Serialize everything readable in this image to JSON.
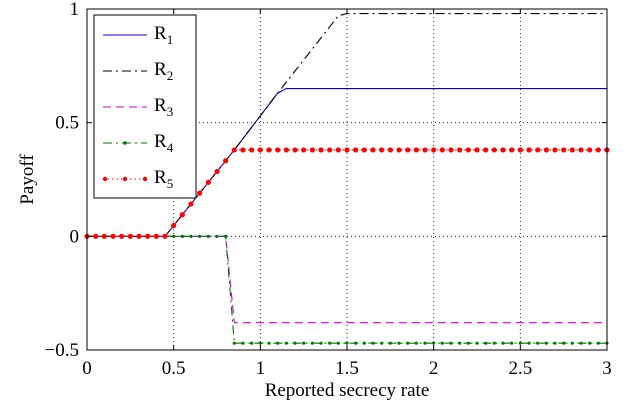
{
  "chart_data": {
    "type": "line",
    "title": "",
    "xlabel": "Reported secrecy rate",
    "ylabel": "Payoff",
    "xlim": [
      0,
      3
    ],
    "ylim": [
      -0.5,
      1
    ],
    "x_ticks": [
      0,
      0.5,
      1,
      1.5,
      2,
      2.5,
      3
    ],
    "x_tick_labels": [
      "0",
      "0.5",
      "1",
      "1.5",
      "2",
      "2.5",
      "3"
    ],
    "y_ticks": [
      -0.5,
      0,
      0.5,
      1
    ],
    "y_tick_labels": [
      "−0.5",
      "0",
      "0.5",
      "1"
    ],
    "grid": true,
    "grid_style": "dotted",
    "legend_position": "top-left",
    "series": [
      {
        "name": "R",
        "subscript": "1",
        "color": "#0000cc",
        "style": "solid",
        "marker": "none",
        "x": [
          0,
          0.45,
          0.85,
          1.1,
          1.15,
          3
        ],
        "y": [
          0,
          0,
          0.38,
          0.63,
          0.65,
          0.65
        ]
      },
      {
        "name": "R",
        "subscript": "2",
        "color": "#000000",
        "style": "dashdot",
        "marker": "none",
        "x": [
          0,
          0.45,
          0.85,
          1.1,
          1.45,
          1.5,
          3
        ],
        "y": [
          0,
          0,
          0.38,
          0.63,
          0.97,
          0.98,
          0.98
        ]
      },
      {
        "name": "R",
        "subscript": "3",
        "color": "#cc00cc",
        "style": "dashed",
        "marker": "none",
        "x": [
          0,
          0.8,
          0.85,
          3
        ],
        "y": [
          0,
          0,
          -0.38,
          -0.38
        ]
      },
      {
        "name": "R",
        "subscript": "4",
        "color": "#007700",
        "style": "dashdot",
        "marker": "dot",
        "x": [
          0,
          0.8,
          0.85,
          3
        ],
        "y": [
          0,
          0,
          -0.47,
          -0.47
        ],
        "marker_x": [
          0,
          0.05,
          0.1,
          0.15,
          0.2,
          0.25,
          0.3,
          0.35,
          0.4,
          0.45,
          0.5,
          0.55,
          0.6,
          0.65,
          0.7,
          0.75,
          0.8,
          0.85,
          0.9,
          0.95,
          1,
          1.05,
          1.1,
          1.15,
          1.2,
          1.25,
          1.3,
          1.35,
          1.4,
          1.45,
          1.5,
          1.55,
          1.6,
          1.65,
          1.7,
          1.75,
          1.8,
          1.85,
          1.9,
          1.95,
          2,
          2.05,
          2.1,
          2.15,
          2.2,
          2.25,
          2.3,
          2.35,
          2.4,
          2.45,
          2.5,
          2.55,
          2.6,
          2.65,
          2.7,
          2.75,
          2.8,
          2.85,
          2.9,
          2.95,
          3
        ],
        "marker_y": [
          0,
          0,
          0,
          0,
          0,
          0,
          0,
          0,
          0,
          0,
          0,
          0,
          0,
          0,
          0,
          0,
          0,
          -0.47,
          -0.47,
          -0.47,
          -0.47,
          -0.47,
          -0.47,
          -0.47,
          -0.47,
          -0.47,
          -0.47,
          -0.47,
          -0.47,
          -0.47,
          -0.47,
          -0.47,
          -0.47,
          -0.47,
          -0.47,
          -0.47,
          -0.47,
          -0.47,
          -0.47,
          -0.47,
          -0.47,
          -0.47,
          -0.47,
          -0.47,
          -0.47,
          -0.47,
          -0.47,
          -0.47,
          -0.47,
          -0.47,
          -0.47,
          -0.47,
          -0.47,
          -0.47,
          -0.47,
          -0.47,
          -0.47,
          -0.47,
          -0.47,
          -0.47,
          -0.47
        ]
      },
      {
        "name": "R",
        "subscript": "5",
        "color": "#ff0000",
        "style": "dotted",
        "marker": "circle",
        "x": [
          0,
          0.45,
          0.85,
          3
        ],
        "y": [
          0,
          0,
          0.38,
          0.38
        ],
        "marker_x": [
          0,
          0.05,
          0.1,
          0.15,
          0.2,
          0.25,
          0.3,
          0.35,
          0.4,
          0.45,
          0.5,
          0.55,
          0.6,
          0.65,
          0.7,
          0.75,
          0.8,
          0.85,
          0.9,
          0.95,
          1,
          1.05,
          1.1,
          1.15,
          1.2,
          1.25,
          1.3,
          1.35,
          1.4,
          1.45,
          1.5,
          1.55,
          1.6,
          1.65,
          1.7,
          1.75,
          1.8,
          1.85,
          1.9,
          1.95,
          2,
          2.05,
          2.1,
          2.15,
          2.2,
          2.25,
          2.3,
          2.35,
          2.4,
          2.45,
          2.5,
          2.55,
          2.6,
          2.65,
          2.7,
          2.75,
          2.8,
          2.85,
          2.9,
          2.95,
          3
        ],
        "marker_y": [
          0,
          0,
          0,
          0,
          0,
          0,
          0,
          0,
          0,
          0,
          0.0475,
          0.095,
          0.1425,
          0.19,
          0.2375,
          0.285,
          0.3325,
          0.38,
          0.38,
          0.38,
          0.38,
          0.38,
          0.38,
          0.38,
          0.38,
          0.38,
          0.38,
          0.38,
          0.38,
          0.38,
          0.38,
          0.38,
          0.38,
          0.38,
          0.38,
          0.38,
          0.38,
          0.38,
          0.38,
          0.38,
          0.38,
          0.38,
          0.38,
          0.38,
          0.38,
          0.38,
          0.38,
          0.38,
          0.38,
          0.38,
          0.38,
          0.38,
          0.38,
          0.38,
          0.38,
          0.38,
          0.38,
          0.38,
          0.38,
          0.38,
          0.38
        ]
      }
    ]
  }
}
